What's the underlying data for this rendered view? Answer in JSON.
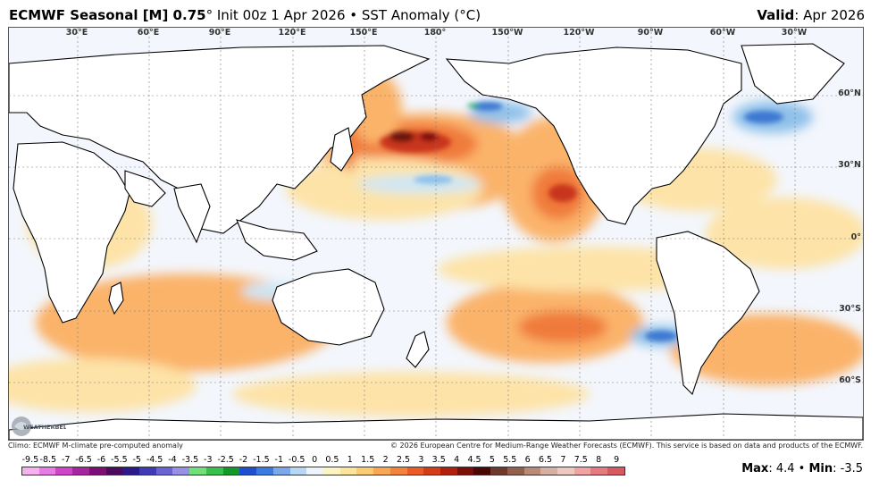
{
  "header": {
    "title_bold": "ECMWF Seasonal [M] 0.75",
    "title_rest": "° Init 00z 1 Apr 2026 • SST Anomaly (°C)",
    "valid_label": "Valid",
    "valid_value": ": Apr 2026"
  },
  "map": {
    "lon_labels": [
      "30°E",
      "60°E",
      "90°E",
      "120°E",
      "150°E",
      "180°",
      "150°W",
      "120°W",
      "90°W",
      "60°W",
      "30°W"
    ],
    "lat_labels": [
      "60°N",
      "30°N",
      "0°",
      "30°S",
      "60°S"
    ],
    "colors": {
      "ocean_neutral": "#f3f6fc",
      "land": "#ffffff",
      "warm_light": "#fde3a7",
      "warm_mid": "#fbb36b",
      "warm_strong": "#f07a3a",
      "warm_intense": "#c8351f",
      "warm_max": "#6a1208",
      "cool_light": "#cde7f7",
      "cool_mid": "#8fc1ea",
      "cool_strong": "#3e78d1",
      "cool_green": "#2fb04a"
    }
  },
  "footer": {
    "climo": "Climo: ECMWF M-climate pre-computed anomaly",
    "copyright": "© 2026 European Centre for Medium-Range Weather Forecasts (ECMWF). This service is based on data and products of the ECMWF."
  },
  "scale": {
    "labels": [
      "-9.5",
      "-8.5",
      "-7",
      "-6.5",
      "-6",
      "-5.5",
      "-5",
      "-4.5",
      "-4",
      "-3.5",
      "-3",
      "-2.5",
      "-2",
      "-1.5",
      "-1",
      "-0.5",
      "0",
      "0.5",
      "1",
      "1.5",
      "2",
      "2.5",
      "3",
      "3.5",
      "4",
      "4.5",
      "5",
      "5.5",
      "6",
      "6.5",
      "7",
      "7.5",
      "8",
      "9"
    ],
    "colors": [
      "#f5b0f0",
      "#e77ce3",
      "#cf45c9",
      "#a8239e",
      "#7e0d78",
      "#4a0a5e",
      "#2c1a8c",
      "#3f3bb6",
      "#6a63d4",
      "#9a8fe6",
      "#6fe07a",
      "#37c24c",
      "#0f9a2a",
      "#1f4fd0",
      "#3b7ae0",
      "#7aa8ea",
      "#b9d6f3",
      "#eef4fb",
      "#fdf4c4",
      "#fde39e",
      "#fcca72",
      "#f9a84f",
      "#f5823a",
      "#ec5a26",
      "#d63a17",
      "#b21f0f",
      "#7c0e08",
      "#4a0705",
      "#6e3a2c",
      "#93604e",
      "#b88a78",
      "#d7b0a5",
      "#eec7c2",
      "#f1a3a3",
      "#e67a80",
      "#d65a62"
    ]
  },
  "stats": {
    "max_label": "Max",
    "max_value": ": 4.4",
    "sep": " • ",
    "min_label": "Min",
    "min_value": ": -3.5"
  },
  "logo_text": "WEATHERBELL"
}
